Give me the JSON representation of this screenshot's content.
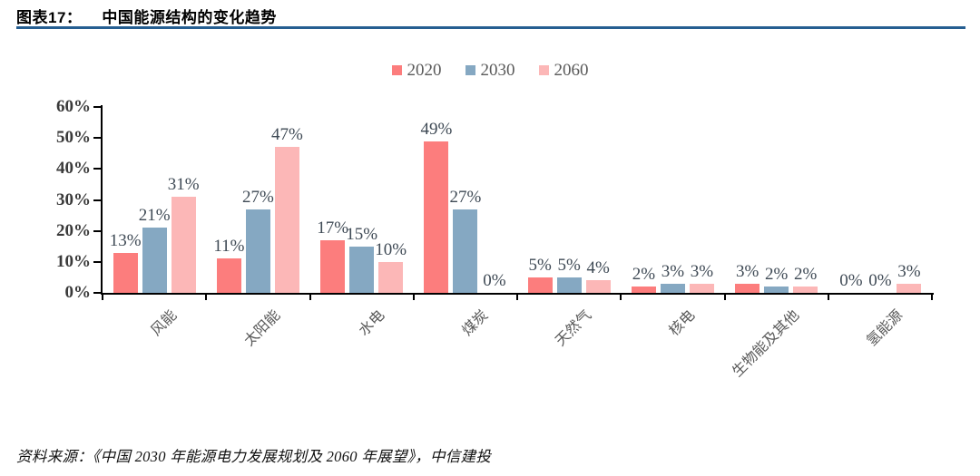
{
  "header": {
    "figure_label": "图表17：",
    "title": "中国能源结构的变化趋势"
  },
  "footer": {
    "source": "资料来源：《中国 2030 年能源电力发展规划及 2060 年展望》，中信建投"
  },
  "colors": {
    "title_rule": "#255E91",
    "series_2020": "#FC7D7D",
    "series_2030": "#85A8C2",
    "series_2060": "#FCB7B7",
    "axis": "#000000",
    "value_label": "#3f4a55",
    "category_label": "#595959"
  },
  "chart_data": {
    "type": "bar",
    "title": "中国能源结构的变化趋势",
    "categories": [
      "风能",
      "太阳能",
      "水电",
      "煤炭",
      "天然气",
      "核电",
      "生物能及其他",
      "氢能源"
    ],
    "series": [
      {
        "name": "2020",
        "color": "#FC7D7D",
        "values": [
          13,
          11,
          17,
          49,
          5,
          2,
          3,
          0
        ]
      },
      {
        "name": "2030",
        "color": "#85A8C2",
        "values": [
          21,
          27,
          15,
          27,
          5,
          3,
          2,
          0
        ]
      },
      {
        "name": "2060",
        "color": "#FCB7B7",
        "values": [
          31,
          47,
          10,
          0,
          4,
          3,
          2,
          3
        ]
      }
    ],
    "value_label_suffix": "%",
    "ylim": [
      0,
      60
    ],
    "ytick_step": 10,
    "ytick_labels": [
      "0%",
      "10%",
      "20%",
      "30%",
      "40%",
      "50%",
      "60%"
    ],
    "grid": false,
    "legend_position": "top",
    "xlabel": "",
    "ylabel": ""
  }
}
